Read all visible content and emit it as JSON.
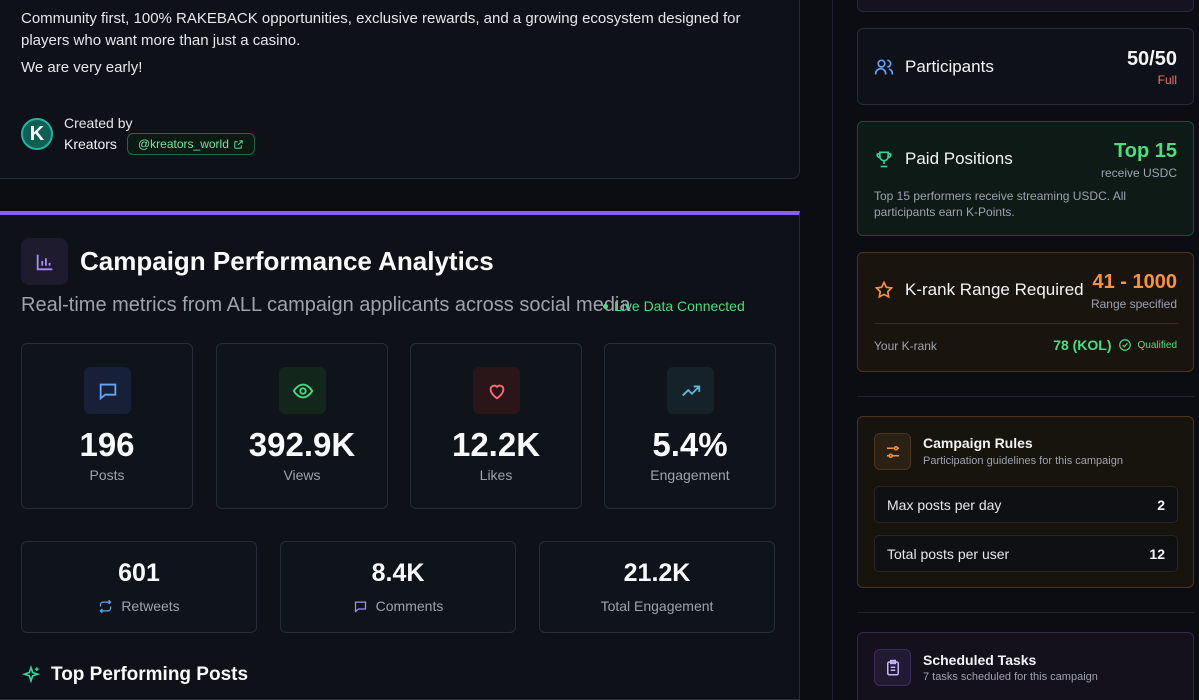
{
  "about": {
    "description": "Community first, 100% RAKEBACK opportunities, exclusive rewards, and a growing ecosystem designed for players who want more than just a casino.",
    "early": "We are very early!",
    "created_by_label": "Created by",
    "creator_name": "Kreators",
    "creator_initial": "K",
    "creator_handle": "@kreators_world"
  },
  "analytics": {
    "title": "Campaign Performance Analytics",
    "subtitle": "Real-time metrics from ALL campaign applicants across social media",
    "live_label": "Live Data Connected",
    "stats": [
      {
        "value": "196",
        "label": "Posts",
        "icon": "message-square-icon"
      },
      {
        "value": "392.9K",
        "label": "Views",
        "icon": "eye-icon"
      },
      {
        "value": "12.2K",
        "label": "Likes",
        "icon": "heart-icon"
      },
      {
        "value": "5.4%",
        "label": "Engagement",
        "icon": "trending-up-icon"
      }
    ],
    "secondary": [
      {
        "value": "601",
        "label": "Retweets",
        "icon": "repeat-icon"
      },
      {
        "value": "8.4K",
        "label": "Comments",
        "icon": "comment-icon"
      },
      {
        "value": "21.2K",
        "label": "Total Engagement"
      }
    ],
    "top_posts_title": "Top Performing Posts"
  },
  "sidebar": {
    "participants": {
      "label": "Participants",
      "value": "50/50",
      "status": "Full"
    },
    "paid": {
      "label": "Paid Positions",
      "value": "Top 15",
      "sub": "receive USDC",
      "desc": "Top 15 performers receive streaming USDC. All participants earn K-Points."
    },
    "krank": {
      "label": "K-rank Range Required",
      "value": "41 - 1000",
      "sub": "Range specified",
      "your_label": "Your K-rank",
      "your_value": "78 (KOL)",
      "qualified": "Qualified"
    },
    "rules": {
      "title": "Campaign Rules",
      "subtitle": "Participation guidelines for this campaign",
      "items": [
        {
          "label": "Max posts per day",
          "value": "2"
        },
        {
          "label": "Total posts per user",
          "value": "12"
        }
      ]
    },
    "tasks": {
      "title": "Scheduled Tasks",
      "subtitle": "7 tasks scheduled for this campaign"
    }
  },
  "colors": {
    "accent_purple": "#8b5cf6",
    "green": "#4ade80",
    "orange": "#fb923c",
    "red": "#f87171",
    "blue": "#60a5fa"
  }
}
